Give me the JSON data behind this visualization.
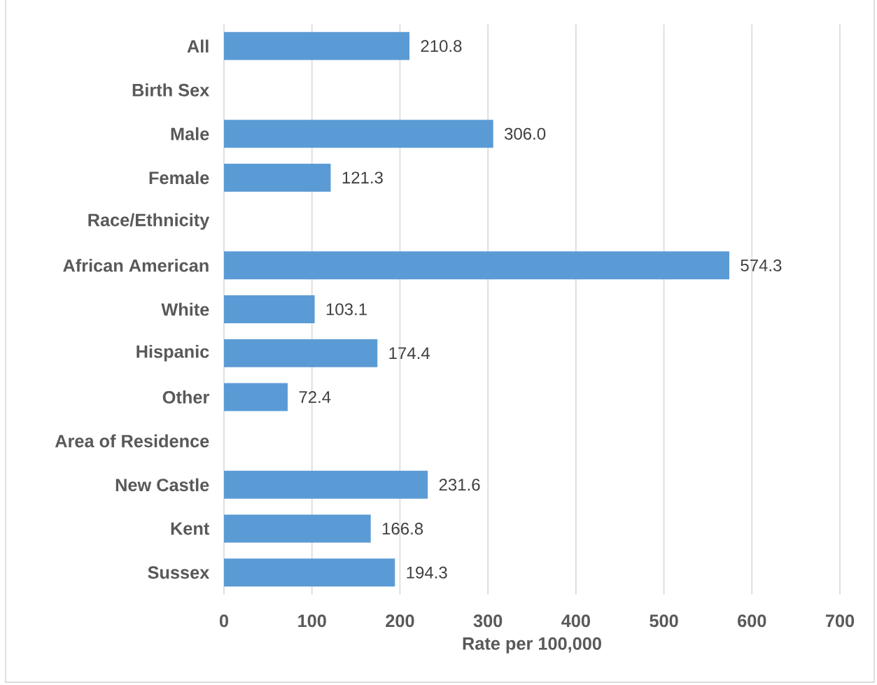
{
  "chart_data": {
    "type": "bar",
    "orientation": "horizontal",
    "xlabel": "Rate per 100,000",
    "categories": [
      "All",
      "Birth Sex",
      "Male",
      "Female",
      "Race/Ethnicity",
      "African American",
      "White",
      "Hispanic",
      "Other",
      "Area of Residence",
      "New Castle",
      "Kent",
      "Sussex"
    ],
    "values": [
      210.8,
      null,
      306.0,
      121.3,
      null,
      574.3,
      103.1,
      174.4,
      72.4,
      null,
      231.6,
      166.8,
      194.3
    ],
    "value_labels": [
      "210.8",
      null,
      "306.0",
      "121.3",
      null,
      "574.3",
      "103.1",
      "174.4",
      "72.4",
      null,
      "231.6",
      "166.8",
      "194.3"
    ],
    "color": "#5b9bd5",
    "xlim": [
      0,
      700
    ],
    "xticks": [
      0,
      100,
      200,
      300,
      400,
      500,
      600,
      700
    ],
    "grid": "x"
  }
}
